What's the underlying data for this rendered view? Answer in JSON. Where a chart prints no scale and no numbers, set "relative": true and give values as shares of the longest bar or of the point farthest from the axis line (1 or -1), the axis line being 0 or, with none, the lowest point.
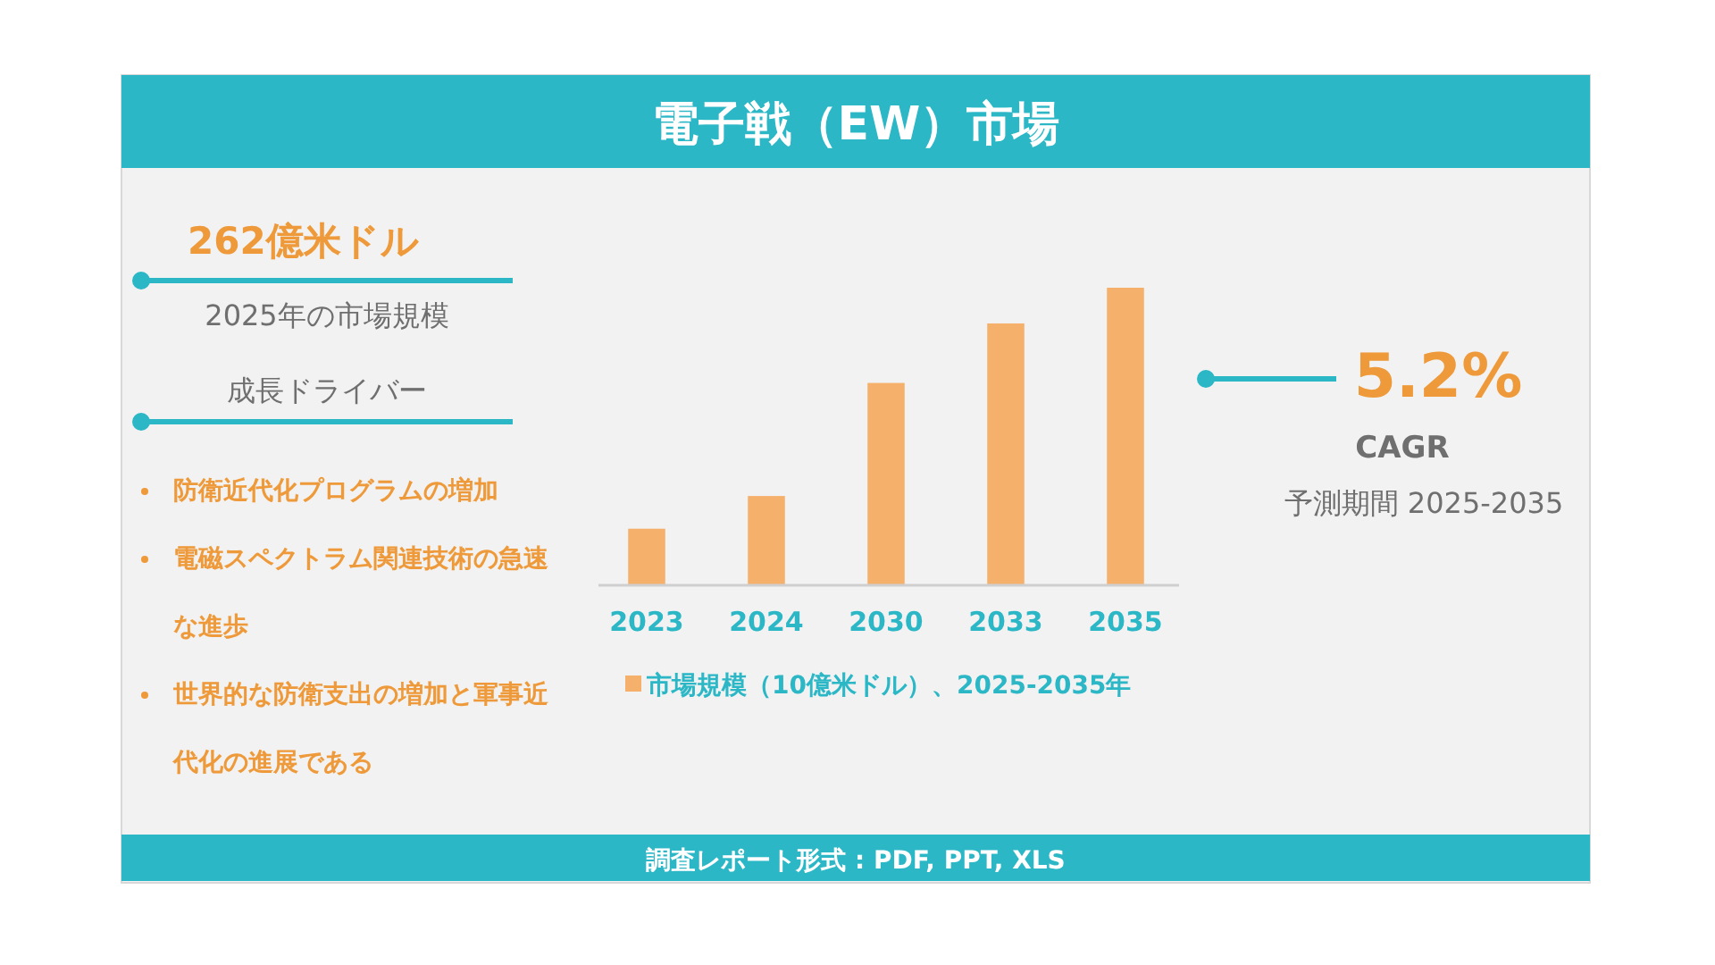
{
  "chart_data": {
    "type": "bar",
    "title": "電子戦（EW）市場",
    "relative": true,
    "categories": [
      "2023",
      "2024",
      "2030",
      "2033",
      "2035"
    ],
    "series": [
      {
        "name": "市場規模（10億米ドル）、2025-2035年",
        "color": "#f5b06b",
        "values": [
          0.19,
          0.3,
          0.68,
          0.88,
          1
        ]
      }
    ],
    "legend": "bottom",
    "annotations": [
      "262億米ドル",
      "2025年の市場規模",
      "成長ドライバー",
      "防衛近代化プログラムの増加",
      "電磁スペクトラム関連技術の急速な進歩",
      "世界的な防衛支出の増加と軍事近代化の進展である",
      "5.2%",
      "CAGR",
      "予測期間 2025-2035",
      "調査レポート形式 : PDF, PPT, XLS"
    ]
  }
}
